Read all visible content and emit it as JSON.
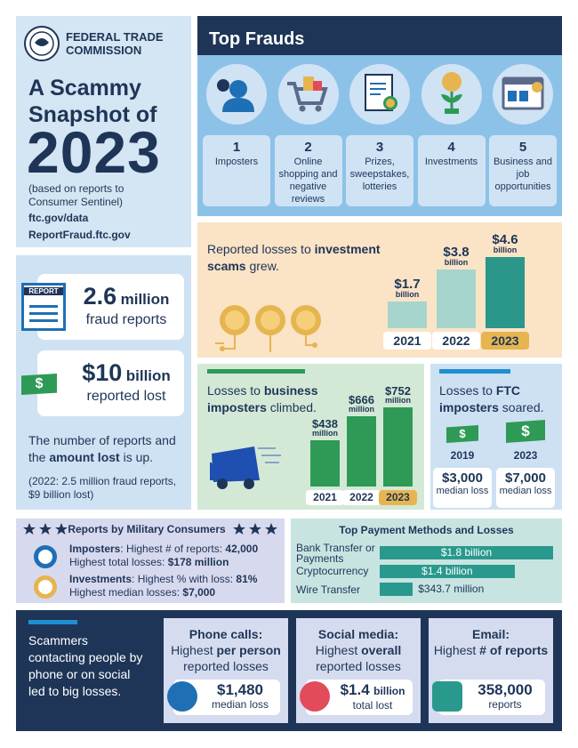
{
  "header": {
    "org": "FEDERAL TRADE COMMISSION",
    "title": "A Scammy Snapshot of",
    "year": "2023",
    "note": "(based on reports to Consumer Sentinel)",
    "links": [
      "ftc.gov/data",
      "ReportFraud.ftc.gov"
    ]
  },
  "currency_symbol": "$",
  "summary": {
    "reports": {
      "badge": "REPORT",
      "number": "2.6",
      "unit": "million",
      "label": "fraud reports"
    },
    "losses": {
      "number": "$10",
      "unit": "billion",
      "label": "reported lost"
    },
    "text": [
      "The number of reports and the ",
      "amount lost",
      " is up."
    ],
    "note": "(2022: 2.5 million fraud reports, $9 billion lost)"
  },
  "top_frauds": {
    "title": "Top Frauds",
    "items": [
      {
        "rank": "1",
        "label": "Imposters"
      },
      {
        "rank": "2",
        "label": "Online shopping and negative reviews"
      },
      {
        "rank": "3",
        "label": "Prizes, sweepstakes, lotteries"
      },
      {
        "rank": "4",
        "label": "Investments"
      },
      {
        "rank": "5",
        "label": "Business and job opportunities"
      }
    ]
  },
  "chart_data": [
    {
      "type": "bar",
      "title": [
        "Reported losses to ",
        "investment scams",
        " grew."
      ],
      "categories": [
        "2021",
        "2022",
        "2023"
      ],
      "values": [
        1.7,
        3.8,
        4.6
      ],
      "value_labels": [
        "$1.7",
        "$3.8",
        "$4.6"
      ],
      "value_unit": "billion",
      "colors": [
        "#a5d5cd",
        "#a5d5cd",
        "#2b968a"
      ],
      "category_colors": [
        "#ffffff",
        "#ffffff",
        "#e6b550"
      ]
    },
    {
      "type": "bar",
      "title": [
        "Losses to ",
        "business imposters",
        " climbed."
      ],
      "categories": [
        "2021",
        "2022",
        "2023"
      ],
      "values": [
        438,
        666,
        752
      ],
      "value_labels": [
        "$438",
        "$666",
        "$752"
      ],
      "value_unit": "million",
      "colors": [
        "#2e9a56",
        "#2e9a56",
        "#2e9a56"
      ],
      "category_colors": [
        "#ffffff",
        "#ffffff",
        "#e6b550"
      ]
    },
    {
      "type": "hbar",
      "title": "Top Payment Methods and Losses",
      "categories": [
        "Bank Transfer or Payments",
        "Cryptocurrency",
        "Wire Transfer"
      ],
      "values": [
        1800,
        1400,
        343.7
      ],
      "value_labels": [
        "$1.8 billion",
        "$1.4 billion",
        "$343.7 million"
      ],
      "color": "#2a998d"
    }
  ],
  "ftc_imposters": {
    "title": [
      "Losses to ",
      "FTC imposters",
      " soared."
    ],
    "items": [
      {
        "year": "2019",
        "amount": "$3,000",
        "label": "median loss"
      },
      {
        "year": "2023",
        "amount": "$7,000",
        "label": "median loss"
      }
    ]
  },
  "military": {
    "title": "Reports by Military Consumers",
    "items": [
      {
        "lines": [
          [
            "Imposters",
            ": Highest # of reports: ",
            "42,000"
          ],
          [
            "Highest total losses: ",
            "$178 million"
          ]
        ]
      },
      {
        "lines": [
          [
            "Investments",
            ": Highest % with loss: ",
            "81%"
          ],
          [
            "Highest median losses: ",
            "$7,000"
          ]
        ]
      }
    ]
  },
  "contact": {
    "text": "Scammers contacting people by phone or on social led to big losses.",
    "cards": [
      {
        "title": "Phone calls:",
        "subtitle": [
          "Highest ",
          "per person",
          " reported losses"
        ],
        "amount": "$1,480",
        "label": "median loss"
      },
      {
        "title": "Social media:",
        "subtitle": [
          "Highest ",
          "overall",
          " reported losses"
        ],
        "amount": "$1.4",
        "unit": "billion",
        "label": "total lost"
      },
      {
        "title": "Email:",
        "subtitle": [
          "Highest ",
          "# of reports"
        ],
        "amount": "358,000",
        "label": "reports"
      }
    ]
  }
}
